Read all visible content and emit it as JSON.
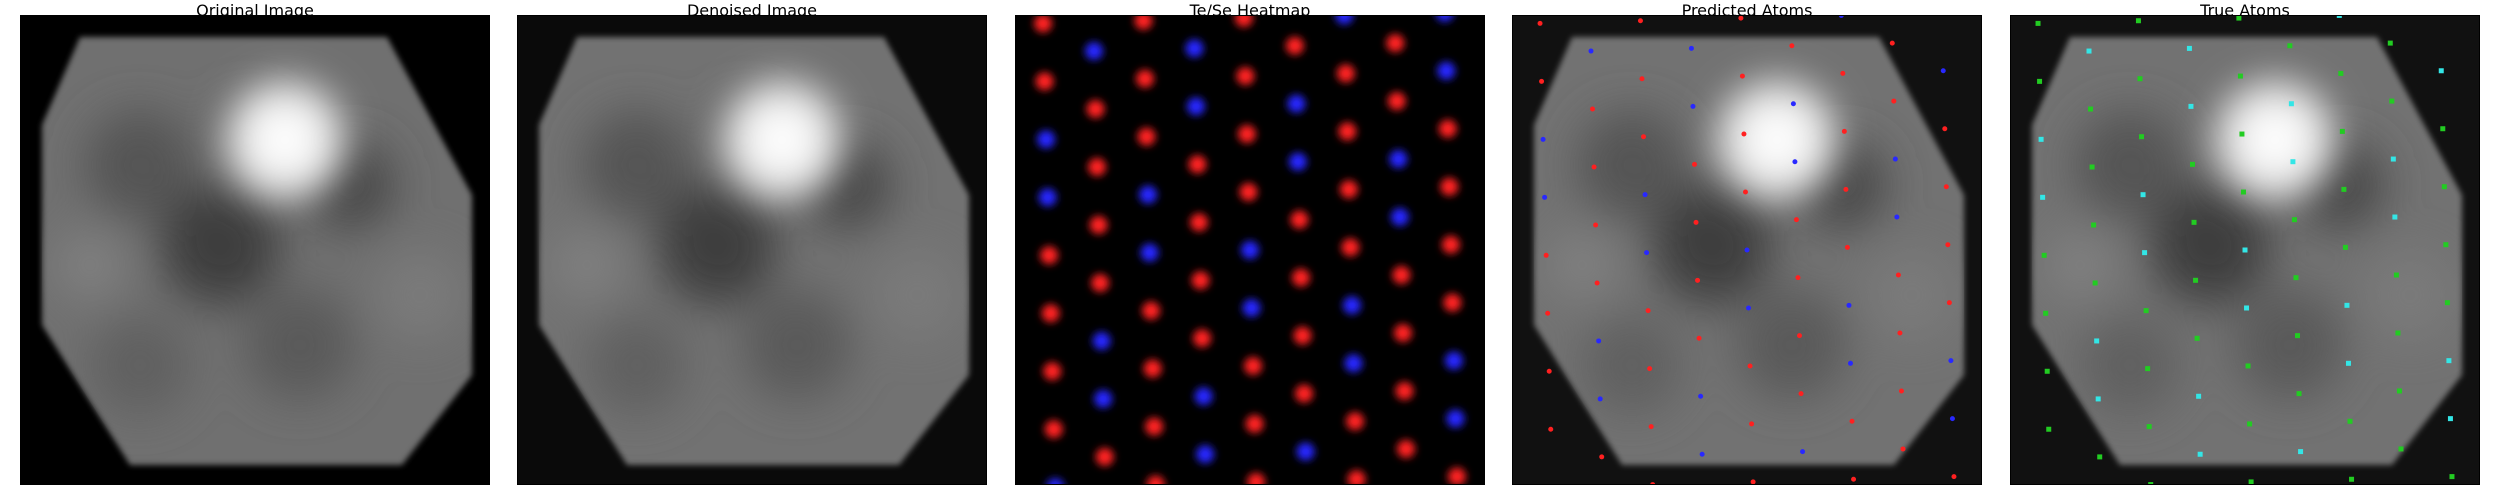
{
  "panels": [
    {
      "id": "original",
      "title": "Original Image"
    },
    {
      "id": "denoised",
      "title": "Denoised Image"
    },
    {
      "id": "heatmap",
      "title": "Te/Se Heatmap"
    },
    {
      "id": "predicted",
      "title": "Predicted Atoms"
    },
    {
      "id": "true",
      "title": "True Atoms"
    }
  ],
  "colors": {
    "te_atom": "#ff2020",
    "se_atom": "#2828ff",
    "true_te": "#22cc22",
    "true_se": "#33e6e6",
    "background": "#000000"
  }
}
